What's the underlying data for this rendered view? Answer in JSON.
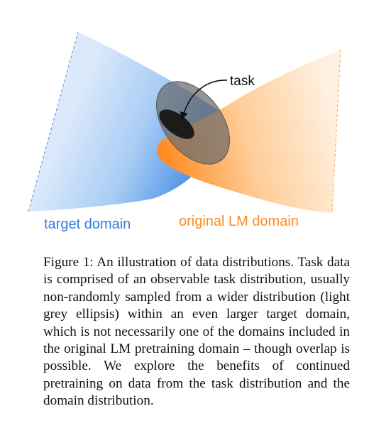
{
  "figure": {
    "labels": {
      "task": "task",
      "target_domain": "target domain",
      "original_domain": "original LM domain"
    },
    "colors": {
      "target_domain": "#2f7fe0",
      "original_domain": "#ff8a1f",
      "task_ellipse": "#1b1b1b",
      "wider_ellipse": "#707070"
    }
  },
  "caption": {
    "text": "Figure 1: An illustration of data distributions. Task data is comprised of an observable task distribution, usually non-randomly sampled from a wider distribution (light grey ellipsis) within an even larger target domain, which is not necessarily one of the domains included in the original LM pretraining domain – though overlap is possible. We explore the benefits of continued pretraining on data from the task distribution and the domain distribution."
  }
}
